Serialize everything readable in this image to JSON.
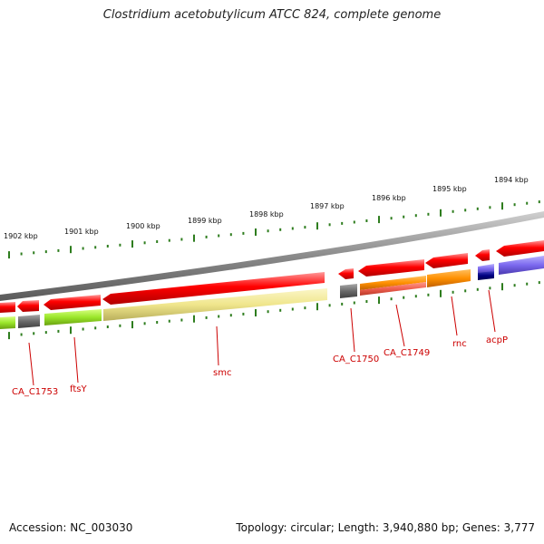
{
  "title": "Clostridium acetobutylicum ATCC 824, complete genome",
  "accession": "Accession: NC_003030",
  "summary": "Topology: circular; Length: 3,940,880 bp; Genes: 3,777",
  "colors": {
    "forward_arrow": "#ff0000",
    "backbone": "#8a8a8a",
    "tick": "#2e7d1e",
    "gene_label": "#cc0000"
  },
  "scale_ticks": [
    {
      "label": "1902 kbp"
    },
    {
      "label": "1901 kbp"
    },
    {
      "label": "1900 kbp"
    },
    {
      "label": "1899 kbp"
    },
    {
      "label": "1898 kbp"
    },
    {
      "label": "1897 kbp"
    },
    {
      "label": "1896 kbp"
    },
    {
      "label": "1895 kbp"
    },
    {
      "label": "1894 kbp"
    }
  ],
  "gene_labels": [
    {
      "text": "CA_C1753"
    },
    {
      "text": "ftsY"
    },
    {
      "text": "smc"
    },
    {
      "text": "CA_C1750"
    },
    {
      "text": "CA_C1749"
    },
    {
      "text": "rnc"
    },
    {
      "text": "acpP"
    }
  ]
}
